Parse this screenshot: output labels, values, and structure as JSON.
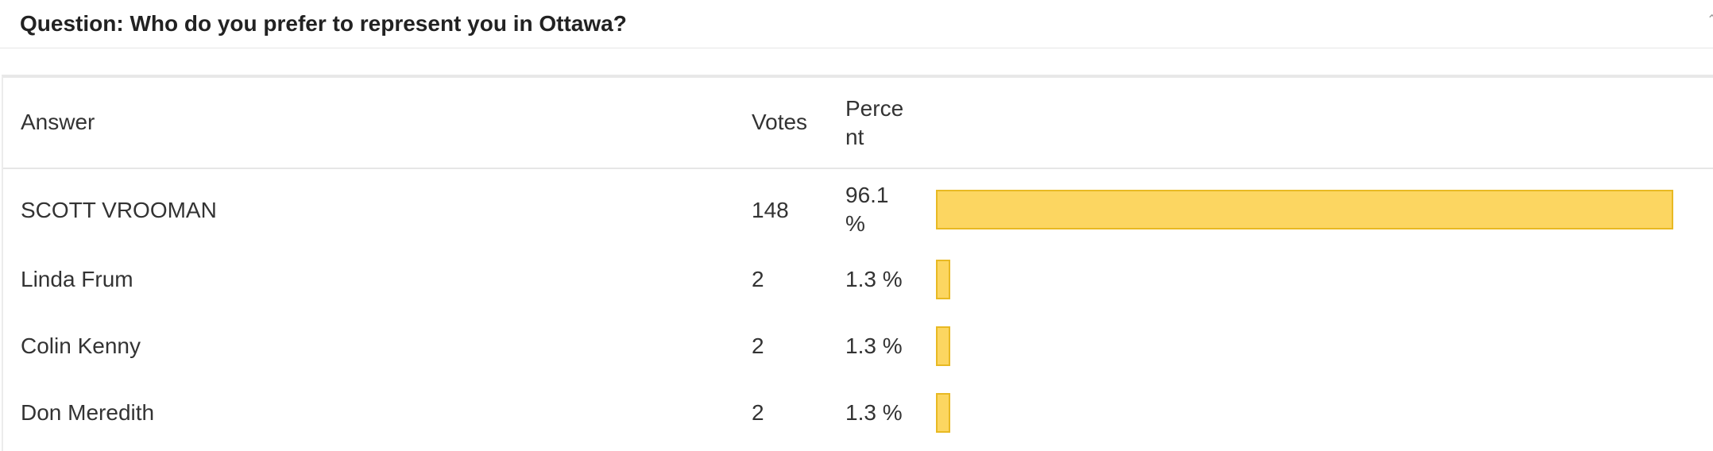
{
  "question": {
    "title": "Question: Who do you prefer to represent you in Ottawa?"
  },
  "table": {
    "headers": {
      "answer": "Answer",
      "votes": "Votes",
      "percent": "Percent"
    },
    "rows": [
      {
        "answer": "SCOTT VROOMAN",
        "votes": "148",
        "percent": "96.1 %",
        "share": 96.1
      },
      {
        "answer": "Linda Frum",
        "votes": "2",
        "percent": "1.3 %",
        "share": 1.3
      },
      {
        "answer": "Colin Kenny",
        "votes": "2",
        "percent": "1.3 %",
        "share": 1.3
      },
      {
        "answer": "Don Meredith",
        "votes": "2",
        "percent": "1.3 %",
        "share": 1.3
      }
    ]
  },
  "colors": {
    "bar_fill": "#fcd661",
    "bar_border": "#e8b923"
  },
  "icons": {
    "collapse": "chevron-up-icon"
  }
}
